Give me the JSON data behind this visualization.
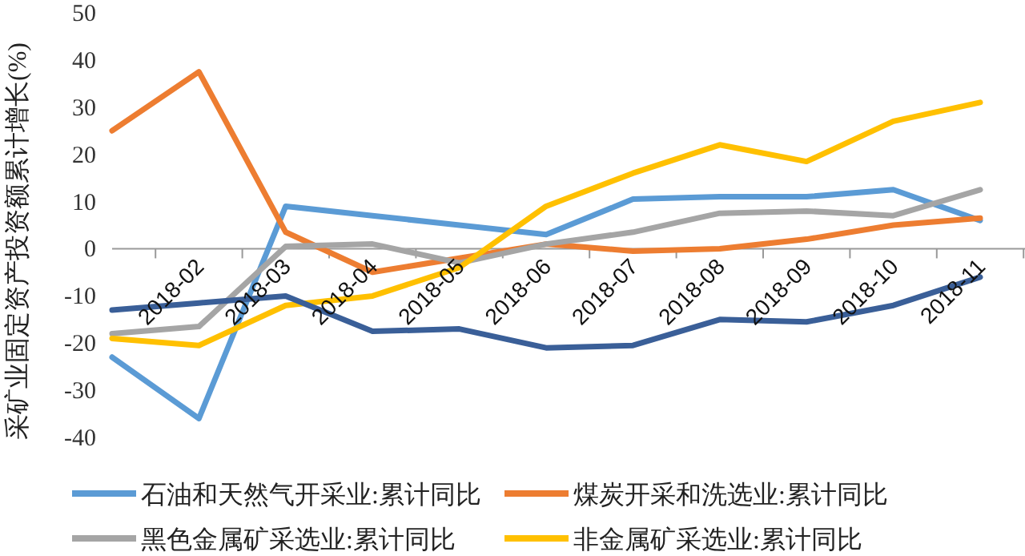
{
  "chart_data": {
    "type": "line",
    "ylabel": "采矿业固定资产投资额累计增长(%)",
    "categories": [
      null,
      "2018-02",
      "2018-03",
      "2018-04",
      "2018-05",
      "2018-06",
      "2018-07",
      "2018-08",
      "2018-09",
      "2018-10",
      "2018-11"
    ],
    "ylim": [
      -40,
      50
    ],
    "yticks": [
      -40,
      -30,
      -20,
      -10,
      0,
      10,
      20,
      30,
      40,
      50
    ],
    "legend": "bottom",
    "series": [
      {
        "name": "石油和天然气开采业:累计同比",
        "color": "#5b9bd5",
        "values": [
          -23,
          -36,
          9,
          7,
          5,
          3,
          10.5,
          11,
          11,
          12.5,
          6
        ]
      },
      {
        "name": "煤炭开采和洗选业:累计同比",
        "color": "#ed7d31",
        "values": [
          25,
          37.5,
          3.5,
          -5,
          -2,
          1,
          -0.5,
          0,
          2,
          5,
          6.5
        ]
      },
      {
        "name": "黑色金属矿采选业:累计同比",
        "color": "#a5a5a5",
        "values": [
          -18,
          -16.5,
          0.5,
          1,
          -3,
          1,
          3.5,
          7.5,
          8,
          7,
          12.5
        ]
      },
      {
        "name": "非金属矿采选业:累计同比",
        "color": "#ffc000",
        "values": [
          -19,
          -20.5,
          -12,
          -10,
          -4,
          9,
          16,
          22,
          18.5,
          27,
          31
        ]
      },
      {
        "color": "#3a5f98",
        "values": [
          -13,
          -11.5,
          -10,
          -17.5,
          -17,
          -21,
          -20.5,
          -15,
          -15.5,
          -12,
          -6
        ]
      }
    ]
  }
}
